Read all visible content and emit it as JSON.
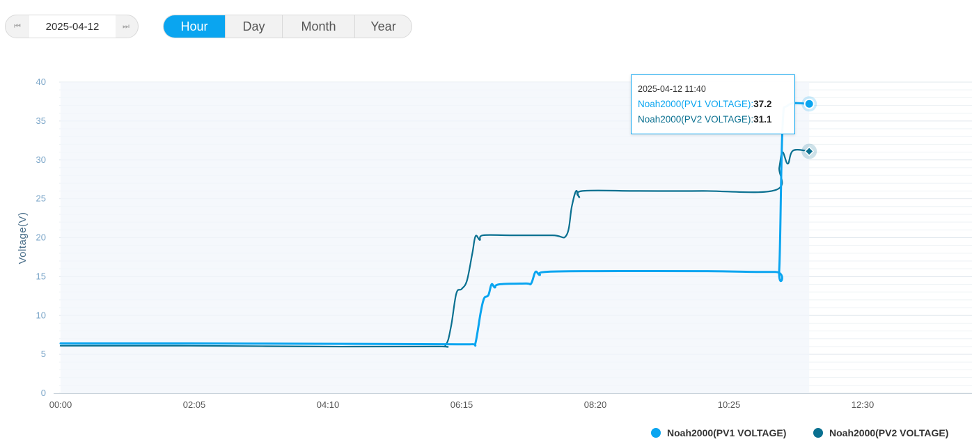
{
  "date_nav": {
    "date": "2025-04-12",
    "prev_icon": "step-backward-icon",
    "next_icon": "step-forward-icon"
  },
  "tabs": [
    {
      "label": "Hour",
      "active": true
    },
    {
      "label": "Day",
      "active": false
    },
    {
      "label": "Month",
      "active": false
    },
    {
      "label": "Year",
      "active": false
    }
  ],
  "tooltip": {
    "time": "2025-04-12 11:40",
    "rows": [
      {
        "name": "Noah2000(PV1 VOLTAGE):",
        "value": "37.2"
      },
      {
        "name": "Noah2000(PV2 VOLTAGE):",
        "value": "31.1"
      }
    ]
  },
  "legend": [
    {
      "label": "Noah2000(PV1 VOLTAGE)",
      "color": "#0aa5f0"
    },
    {
      "label": "Noah2000(PV2 VOLTAGE)",
      "color": "#0a7090"
    }
  ],
  "chart_data": {
    "type": "line",
    "ylabel": "Voltage(V)",
    "xlabel": "",
    "ylim": [
      0,
      40
    ],
    "yticks": [
      "0",
      "5",
      "10",
      "15",
      "20",
      "25",
      "30",
      "35",
      "40"
    ],
    "xticks": [
      "00:00",
      "02:05",
      "04:10",
      "06:15",
      "08:20",
      "10:25",
      "12:30"
    ],
    "x_range": [
      "00:00",
      "13:40"
    ],
    "grid": true,
    "legend_position": "bottom-right",
    "series": [
      {
        "name": "Noah2000(PV1 VOLTAGE)",
        "color": "#0aa5f0",
        "points": [
          [
            "00:00",
            6.4
          ],
          [
            "02:00",
            6.4
          ],
          [
            "04:00",
            6.35
          ],
          [
            "06:00",
            6.3
          ],
          [
            "06:25",
            6.3
          ],
          [
            "06:28",
            6.5
          ],
          [
            "06:33",
            10.5
          ],
          [
            "06:36",
            12.2
          ],
          [
            "06:40",
            12.6
          ],
          [
            "06:43",
            14.0
          ],
          [
            "06:46",
            13.6
          ],
          [
            "06:50",
            14.0
          ],
          [
            "07:15",
            14.1
          ],
          [
            "07:20",
            14.1
          ],
          [
            "07:24",
            15.6
          ],
          [
            "07:28",
            15.2
          ],
          [
            "07:33",
            15.6
          ],
          [
            "08:20",
            15.7
          ],
          [
            "10:00",
            15.7
          ],
          [
            "11:08",
            15.6
          ],
          [
            "11:12",
            16.0
          ],
          [
            "11:15",
            34.0
          ],
          [
            "11:20",
            37.0
          ],
          [
            "11:40",
            37.2
          ]
        ]
      },
      {
        "name": "Noah2000(PV2 VOLTAGE)",
        "color": "#0a7090",
        "points": [
          [
            "00:00",
            6.1
          ],
          [
            "02:00",
            6.1
          ],
          [
            "04:00",
            6.0
          ],
          [
            "05:50",
            6.0
          ],
          [
            "06:00",
            6.2
          ],
          [
            "06:05",
            8.5
          ],
          [
            "06:10",
            12.8
          ],
          [
            "06:15",
            13.4
          ],
          [
            "06:20",
            14.5
          ],
          [
            "06:25",
            18.0
          ],
          [
            "06:28",
            20.2
          ],
          [
            "06:32",
            19.7
          ],
          [
            "06:35",
            20.3
          ],
          [
            "07:00",
            20.3
          ],
          [
            "07:40",
            20.3
          ],
          [
            "07:53",
            20.3
          ],
          [
            "07:58",
            24.0
          ],
          [
            "08:02",
            26.0
          ],
          [
            "08:05",
            25.2
          ],
          [
            "08:08",
            26.0
          ],
          [
            "09:00",
            26.0
          ],
          [
            "10:00",
            26.0
          ],
          [
            "11:08",
            26.1
          ],
          [
            "11:12",
            29.0
          ],
          [
            "11:15",
            31.0
          ],
          [
            "11:20",
            29.5
          ],
          [
            "11:25",
            31.2
          ],
          [
            "11:40",
            31.1
          ]
        ]
      }
    ]
  }
}
